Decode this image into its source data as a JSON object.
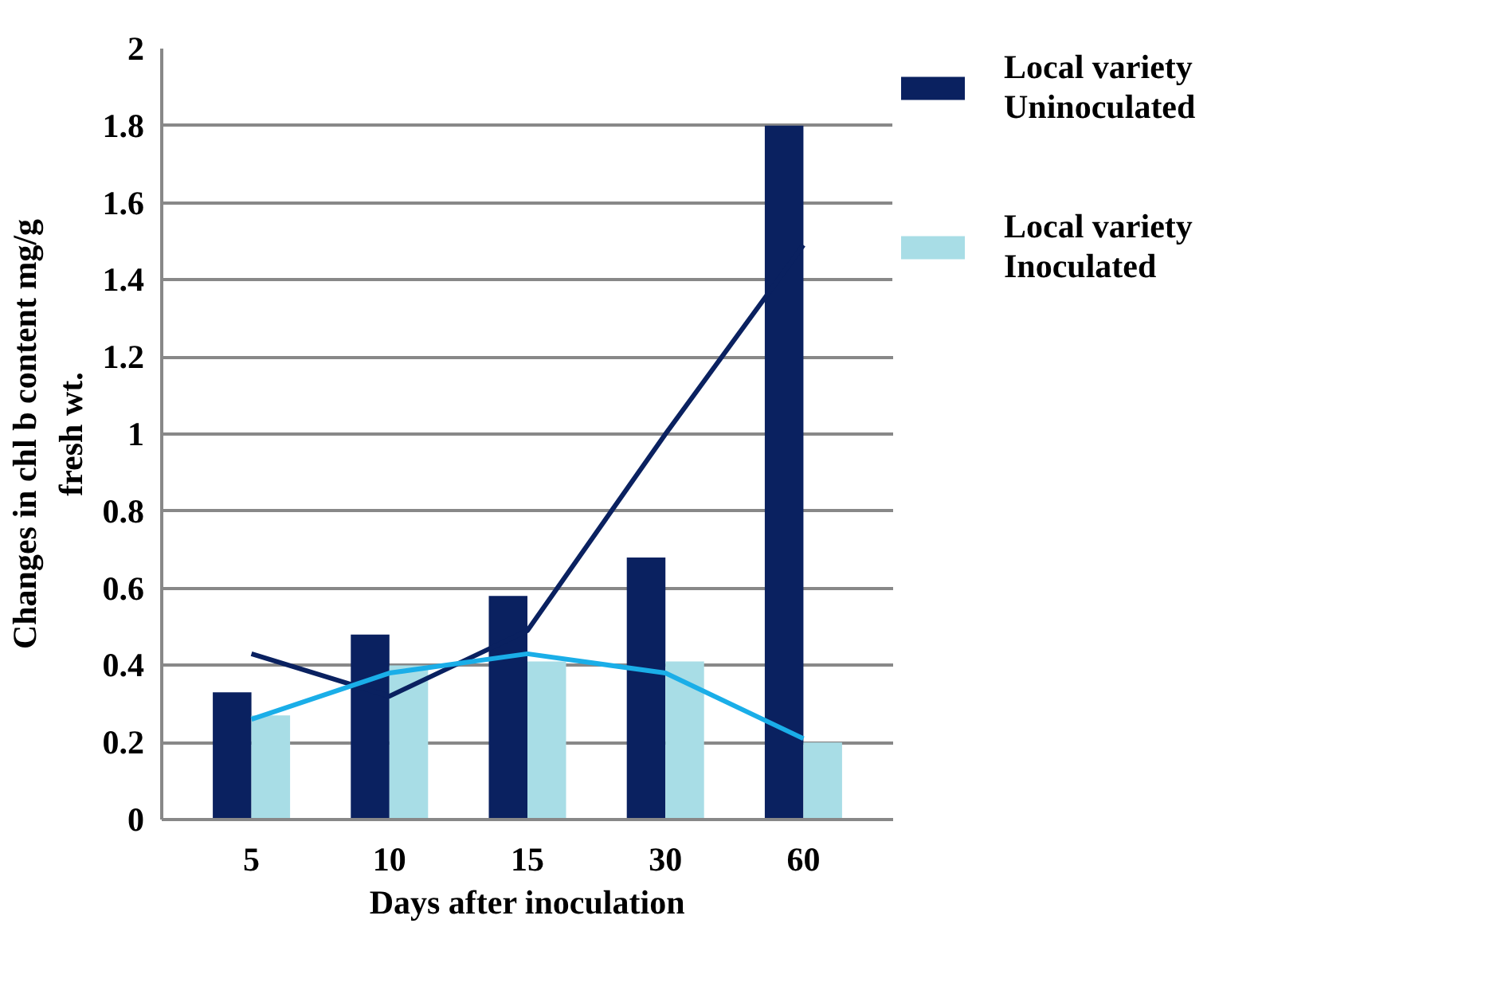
{
  "chart_data": {
    "type": "bar",
    "xlabel": "Days after inoculation",
    "ylabel": "Changes in chl b content mg/g\nfresh wt.",
    "categories": [
      "5",
      "10",
      "15",
      "30",
      "60"
    ],
    "series": [
      {
        "name": "Local variety\nUninoculated",
        "color": "#0a2160",
        "values": [
          0.33,
          0.48,
          0.58,
          0.68,
          1.8
        ]
      },
      {
        "name": "Local variety\nInoculated",
        "color": "#a8dde6",
        "values": [
          0.27,
          0.4,
          0.41,
          0.41,
          0.2
        ]
      },
      {
        "type": "line",
        "color": "#0a2160",
        "values": [
          0.43,
          0.32,
          0.49,
          1.0,
          1.49
        ]
      },
      {
        "type": "line",
        "color": "#1aaee8",
        "values": [
          0.26,
          0.38,
          0.43,
          0.38,
          0.21
        ]
      }
    ],
    "ylim": [
      0,
      2
    ],
    "yticks": [
      0,
      0.2,
      0.4,
      0.6,
      0.8,
      1,
      1.2,
      1.4,
      1.6,
      1.8,
      2
    ],
    "grid": "y",
    "legend": "right"
  }
}
